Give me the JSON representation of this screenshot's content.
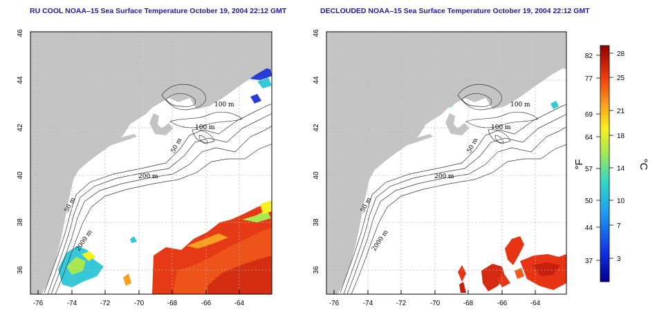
{
  "panels": [
    {
      "title": "RU COOL NOAA–15 Sea Surface Temperature October 19, 2004 22:12 GMT"
    },
    {
      "title": "DECLOUDED NOAA–15 Sea Surface Temperature October 19, 2004 22:12 GMT"
    }
  ],
  "x_ticks": [
    "-76",
    "-74",
    "-72",
    "-70",
    "-68",
    "-66",
    "-64"
  ],
  "y_ticks": [
    "36",
    "38",
    "40",
    "42",
    "44",
    "46"
  ],
  "contours": {
    "c100a": "100 m",
    "c100b": "100 m",
    "c50a": "50 m",
    "c200": "200 m",
    "c50b": "50 m",
    "c2000": "2000 m"
  },
  "colorbar": {
    "fahrenheit": [
      "82",
      "77",
      "69",
      "64",
      "57",
      "50",
      "44",
      "37"
    ],
    "celsius": [
      "28",
      "25",
      "21",
      "18",
      "14",
      "10",
      "7",
      "3"
    ],
    "unit_f": "°F",
    "unit_c": "°C"
  },
  "colors": {
    "land": "#c4c4c4",
    "grid": "#b4b4b4",
    "title": "#1c1c9e",
    "cold": "#2a3cd8",
    "cool": "#34c8d8",
    "warm": "#e63414",
    "hot": "#c81e10"
  }
}
